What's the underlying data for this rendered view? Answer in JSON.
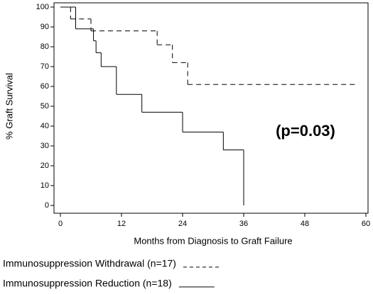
{
  "chart_data": {
    "type": "step",
    "xlabel": "Months from Diagnosis to Graft Failure",
    "ylabel": "% Graft Survival",
    "annotation": "(p=0.03)",
    "xlim": [
      0,
      60
    ],
    "xticks": [
      0,
      12,
      24,
      36,
      48,
      60
    ],
    "ylim": [
      0,
      100
    ],
    "yticks": [
      0,
      10,
      20,
      30,
      40,
      50,
      60,
      70,
      80,
      90,
      100
    ],
    "series": [
      {
        "name": "Immunosuppression Withdrawal (n=17)",
        "color": "#000000",
        "dash": "----- ",
        "x": [
          0,
          2,
          6,
          19,
          22,
          25,
          58
        ],
        "values": [
          100,
          94,
          88,
          81,
          72,
          61,
          61
        ]
      },
      {
        "name": "Immunosuppression Reduction (n=18)",
        "color": "#000000",
        "dash": null,
        "x": [
          0,
          3,
          6.5,
          7,
          8,
          11,
          16,
          24,
          32,
          36
        ],
        "values": [
          100,
          89,
          83,
          77,
          70,
          56,
          47,
          37,
          28,
          0
        ]
      }
    ]
  }
}
